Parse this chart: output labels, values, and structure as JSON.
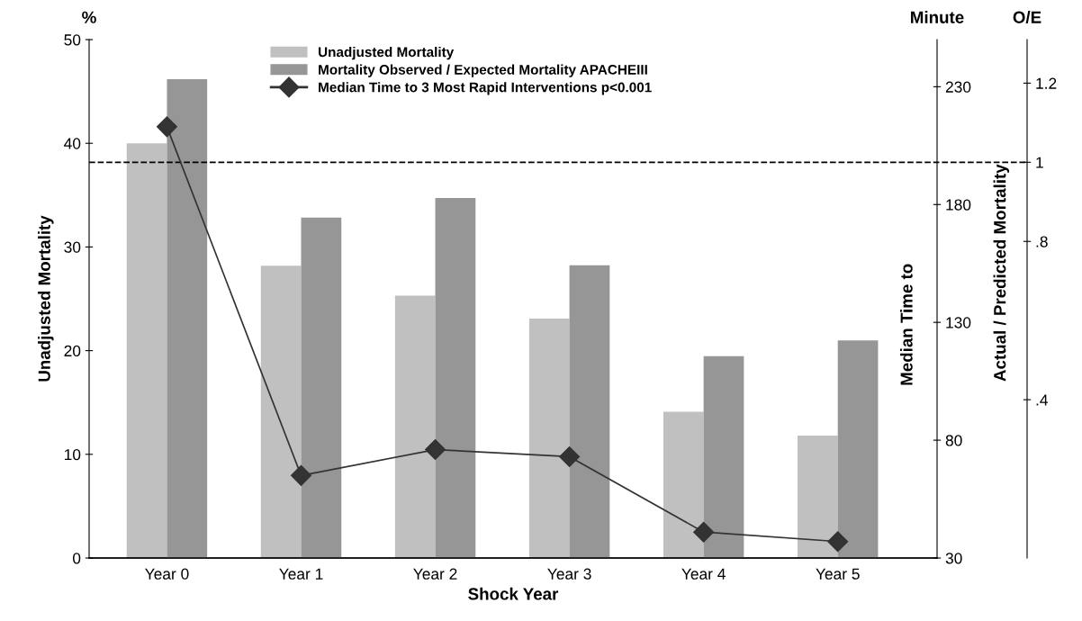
{
  "chart_data": {
    "type": "bar",
    "xlabel": "Shock Year",
    "ylabel": "Unadjusted Mortality",
    "y2label": "Median Time to",
    "y3label": "Actual / Predicted Mortality",
    "annotations": [
      "%",
      "Minute",
      "O/E"
    ],
    "categories": [
      "Year 0",
      "Year 1",
      "Year 2",
      "Year 3",
      "Year 4",
      "Year 5"
    ],
    "series": [
      {
        "name": "Unadjusted Mortality",
        "color": "#c0c0c0",
        "values": [
          40.0,
          28.2,
          25.3,
          23.1,
          14.1,
          11.8
        ]
      },
      {
        "name": "Mortality Observed / Expected Mortality APACHEIII",
        "color": "#969696",
        "axis": "y3",
        "values": [
          1.21,
          0.86,
          0.91,
          0.74,
          0.51,
          0.55
        ]
      },
      {
        "name": "Median Time to 3 Most Rapid Interventions p<0.001",
        "type": "line",
        "axis": "y2",
        "color": "#333333",
        "marker": "diamond",
        "line_style": "solid",
        "values": [
          213,
          65,
          76,
          73,
          41,
          37
        ]
      }
    ],
    "ylim": [
      0,
      50
    ],
    "yticks": [
      0,
      10,
      20,
      30,
      40,
      50
    ],
    "y2lim": [
      30,
      250
    ],
    "y2ticks": [
      30,
      80,
      130,
      180,
      230
    ],
    "y3lim": [
      0,
      1.31
    ],
    "y3ticks": [
      {
        "value": 0.4,
        "label": ".4"
      },
      {
        "value": 0.8,
        "label": ".8"
      },
      1,
      1.2
    ],
    "ref_lines": [
      {
        "axis": "y3",
        "value": 1,
        "label": null,
        "color": "#000000",
        "line_style": "dashed"
      }
    ],
    "legend": "top",
    "grid": false
  }
}
